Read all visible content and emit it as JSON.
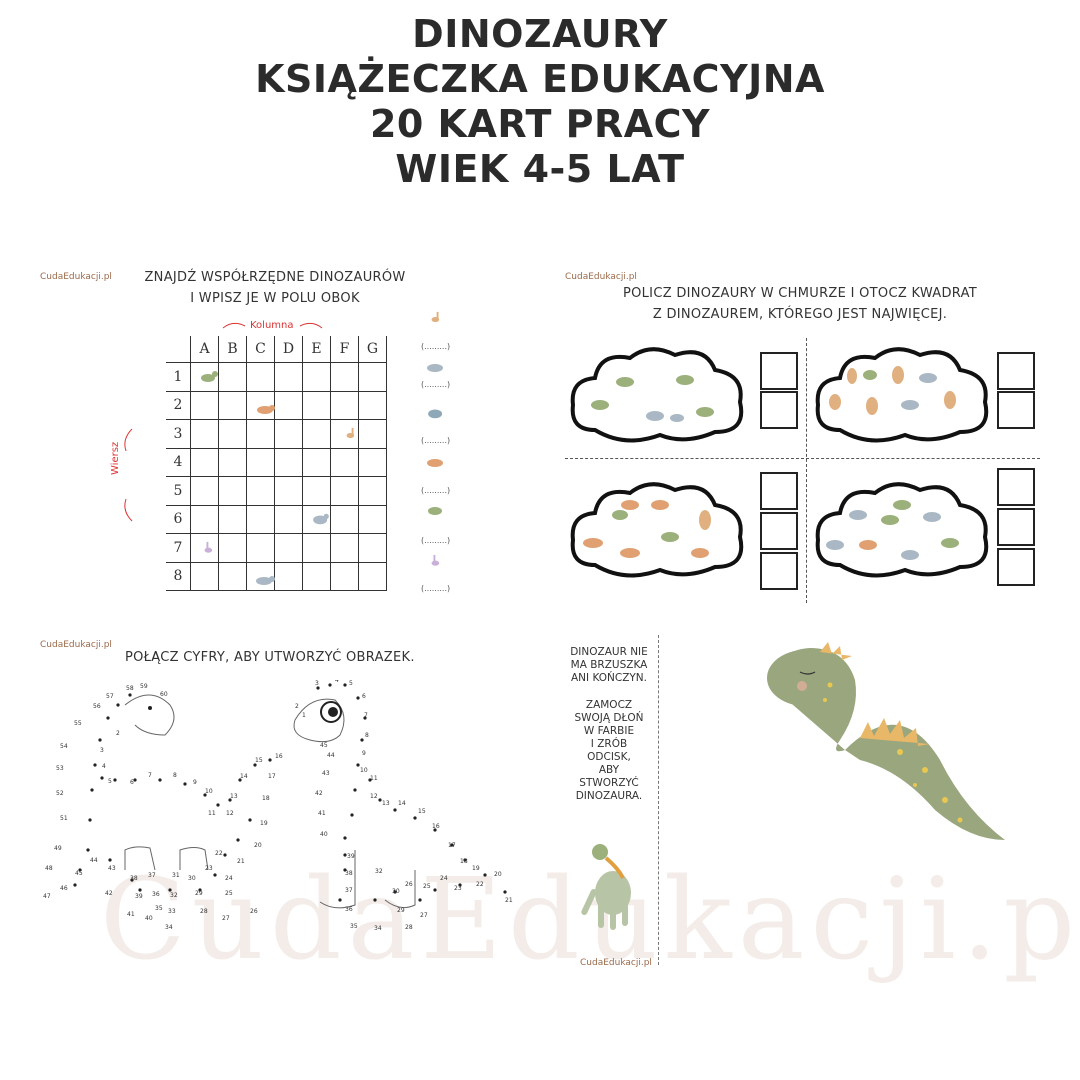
{
  "title": {
    "line1": "DINOZAURY",
    "line2": "KSIĄŻECZKA EDUKACYJNA",
    "line3": "20 KART PRACY",
    "line4": "WIEK 4-5 LAT"
  },
  "watermark": "CudaEdukacji.pl",
  "brand_label": "CudaEdukacji.pl",
  "card1": {
    "instruction_line1": "ZNAJDŹ WSPÓŁRZĘDNE DINOZAURÓW",
    "instruction_line2": "I WPISZ JE W POLU OBOK",
    "kolumna_label": "Kolumna",
    "wiersz_label": "Wiersz",
    "columns": [
      "A",
      "B",
      "C",
      "D",
      "E",
      "F",
      "G"
    ],
    "rows": [
      "1",
      "2",
      "3",
      "4",
      "5",
      "6",
      "7",
      "8"
    ],
    "answer_blank": "(.........)"
  },
  "card2": {
    "instruction_line1": "POLICZ DINOZAURY W CHMURZE I OTOCZ KWADRAT",
    "instruction_line2": "Z DINOZAUREM, KTÓREGO JEST NAJWIĘCEJ."
  },
  "card3": {
    "instruction": "POŁĄCZ CYFRY, ABY UTWORZYĆ OBRAZEK."
  },
  "card4": {
    "text_line1": "DINOZAUR NIE",
    "text_line2": "MA BRZUSZKA",
    "text_line3": "ANI KOŃCZYN.",
    "text_line4": "ZAMOCZ",
    "text_line5": "SWOJĄ DŁOŃ",
    "text_line6": "W FARBIE",
    "text_line7": "I ZRÓB",
    "text_line8": "ODCISK,",
    "text_line9": "ABY",
    "text_line10": "STWORZYĆ",
    "text_line11": "DINOZAURA."
  },
  "colors": {
    "green": "#9bb07a",
    "orange": "#e0a072",
    "blue": "#a9b8c4",
    "purple": "#c9b0d8",
    "red": "#d33333"
  }
}
